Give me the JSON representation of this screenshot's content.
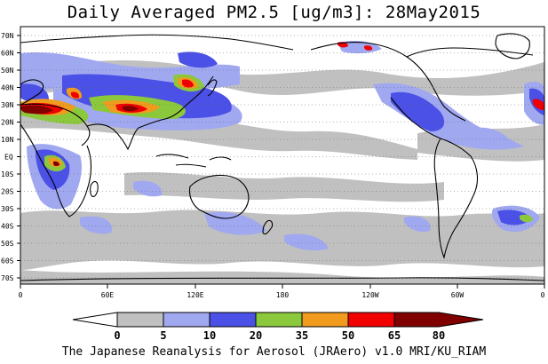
{
  "title": "Daily Averaged PM2.5 [ug/m3]: 28May2015",
  "credit": "The Japanese Reanalysis for Aerosol (JRAero) v1.0 MRI/KU_RIAM",
  "map": {
    "lat_labels": [
      "70N",
      "60N",
      "50N",
      "40N",
      "30N",
      "20N",
      "10N",
      "EQ",
      "10S",
      "20S",
      "30S",
      "40S",
      "50S",
      "60S",
      "70S"
    ],
    "lon_labels": [
      "0",
      "60E",
      "120E",
      "180",
      "120W",
      "60W",
      "0"
    ]
  },
  "legend": {
    "levels": [
      "0",
      "5",
      "10",
      "20",
      "35",
      "50",
      "65",
      "80"
    ],
    "colors": {
      "b0": "#ffffff",
      "b1": "#c0c0c0",
      "b2": "#a0a8f0",
      "b3": "#4b50e6",
      "b4": "#8cc83c",
      "b5": "#f09b1e",
      "b6": "#f00000",
      "b7": "#800000"
    }
  }
}
